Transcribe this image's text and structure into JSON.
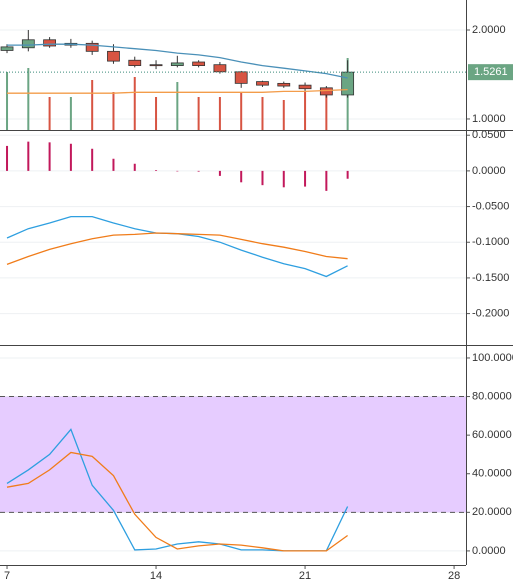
{
  "chart_data": [
    {
      "type": "candlestick",
      "x": [
        7,
        8,
        9,
        10,
        11,
        12,
        13,
        14,
        15,
        16,
        17,
        18,
        19,
        20,
        21,
        22,
        23
      ],
      "open": [
        1.77,
        1.8,
        1.89,
        1.83,
        1.85,
        1.76,
        1.66,
        1.61,
        1.6,
        1.64,
        1.61,
        1.53,
        1.42,
        1.4,
        1.38,
        1.35,
        1.27
      ],
      "high": [
        1.84,
        2.0,
        1.92,
        1.9,
        1.88,
        1.84,
        1.7,
        1.66,
        1.71,
        1.66,
        1.64,
        1.54,
        1.43,
        1.42,
        1.41,
        1.37,
        1.66
      ],
      "low": [
        1.74,
        1.76,
        1.8,
        1.8,
        1.72,
        1.62,
        1.58,
        1.56,
        1.58,
        1.58,
        1.51,
        1.35,
        1.36,
        1.35,
        1.31,
        1.24,
        1.24
      ],
      "close": [
        1.81,
        1.89,
        1.82,
        1.85,
        1.76,
        1.65,
        1.6,
        1.6,
        1.63,
        1.6,
        1.53,
        1.4,
        1.38,
        1.37,
        1.34,
        1.27,
        1.5261
      ],
      "up_color": "#6ba583",
      "down_color": "#d75442",
      "volume": [
        58,
        62,
        33,
        33,
        50,
        38,
        53,
        33,
        48,
        33,
        33,
        38,
        33,
        30,
        38,
        38,
        72
      ],
      "volume_lim": [
        0,
        130
      ],
      "series": [
        {
          "color": "#4a90b8",
          "values": [
            1.83,
            1.83,
            1.84,
            1.84,
            1.83,
            1.81,
            1.79,
            1.77,
            1.74,
            1.72,
            1.69,
            1.64,
            1.6,
            1.57,
            1.54,
            1.51,
            1.46
          ]
        },
        {
          "color": "#f39c4a",
          "values": [
            1.29,
            1.29,
            1.29,
            1.29,
            1.29,
            1.29,
            1.3,
            1.3,
            1.3,
            1.3,
            1.3,
            1.3,
            1.3,
            1.31,
            1.31,
            1.32,
            1.33
          ]
        }
      ],
      "last_price": {
        "value": 1.5261,
        "label": "1.5261"
      },
      "xlim": [
        6.67,
        28.56
      ],
      "ylim": [
        0.876,
        2.337
      ],
      "yticks": [
        {
          "value": 2,
          "label": "2.0000"
        },
        {
          "value": 1,
          "label": "1.0000"
        }
      ]
    },
    {
      "type": "macd",
      "x": [
        7,
        8,
        9,
        10,
        11,
        12,
        13,
        14,
        15,
        16,
        17,
        18,
        19,
        20,
        21,
        22,
        23
      ],
      "series": [
        {
          "style": "bar",
          "color": "#c2185b",
          "values": [
            0.035,
            0.041,
            0.04,
            0.038,
            0.031,
            0.017,
            0.01,
            0.001,
            0,
            -0.001,
            -0.007,
            -0.016,
            -0.02,
            -0.023,
            -0.022,
            -0.028,
            -0.011
          ]
        },
        {
          "color": "#2e9fe0",
          "values": [
            -0.094,
            -0.081,
            -0.073,
            -0.064,
            -0.064,
            -0.073,
            -0.081,
            -0.087,
            -0.088,
            -0.092,
            -0.1,
            -0.111,
            -0.121,
            -0.13,
            -0.137,
            -0.148,
            -0.133
          ]
        },
        {
          "color": "#f07c1a",
          "values": [
            -0.131,
            -0.12,
            -0.11,
            -0.102,
            -0.095,
            -0.09,
            -0.089,
            -0.087,
            -0.088,
            -0.089,
            -0.09,
            -0.096,
            -0.102,
            -0.107,
            -0.113,
            -0.12,
            -0.123
          ]
        }
      ],
      "xlim": [
        6.67,
        28.56
      ],
      "ylim": [
        -0.244,
        0.0559
      ],
      "yticks": [
        {
          "value": 0.05,
          "label": "0.0500"
        },
        {
          "value": 0,
          "label": "0.0000"
        },
        {
          "value": -0.05,
          "label": "-0.0500"
        },
        {
          "value": -0.1,
          "label": "-0.1000"
        },
        {
          "value": -0.15,
          "label": "-0.1500"
        },
        {
          "value": -0.2,
          "label": "-0.2000"
        }
      ]
    },
    {
      "type": "line",
      "x": [
        7,
        8,
        9,
        10,
        11,
        12,
        13,
        14,
        15,
        16,
        17,
        18,
        19,
        20,
        21,
        22,
        23
      ],
      "series": [
        {
          "color": "#2e9fe0",
          "values": [
            35,
            42,
            50,
            63,
            34,
            21,
            0.5,
            1,
            3.6,
            4.7,
            3.6,
            0.5,
            0.5,
            0,
            0,
            0,
            23
          ]
        },
        {
          "color": "#f07c1a",
          "values": [
            33,
            35,
            42,
            51,
            49,
            39,
            19,
            7,
            1,
            2.6,
            3.6,
            3,
            1.6,
            0,
            0,
            0,
            8
          ]
        }
      ],
      "band": [
        20,
        80
      ],
      "band_color": "#e6ccff",
      "xlim": [
        6.67,
        28.56
      ],
      "ylim": [
        -7.3,
        106.2
      ],
      "yticks": [
        {
          "value": 100,
          "label": "100.0000"
        },
        {
          "value": 80,
          "label": "80.0000"
        },
        {
          "value": 60,
          "label": "60.0000"
        },
        {
          "value": 40,
          "label": "40.0000"
        },
        {
          "value": 20,
          "label": "20.0000"
        },
        {
          "value": 0,
          "label": "0.0000"
        }
      ],
      "xticks": [
        7,
        14,
        21,
        28
      ]
    }
  ]
}
